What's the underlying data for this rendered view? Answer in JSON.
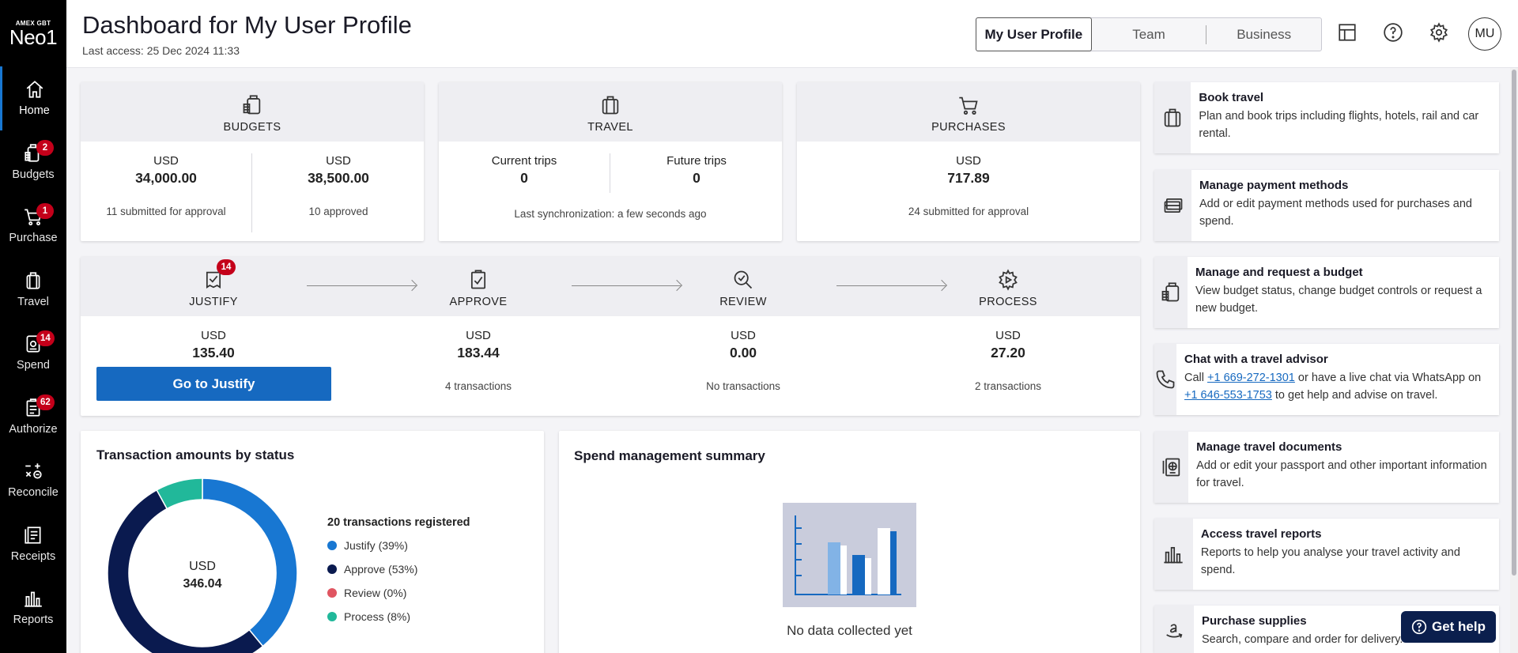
{
  "brand": {
    "small": "AMEX GBT",
    "big": "Neo1"
  },
  "sidebar": {
    "items": [
      {
        "label": "Home",
        "icon": "home-icon",
        "badge": ""
      },
      {
        "label": "Budgets",
        "icon": "budget-icon",
        "badge": "2"
      },
      {
        "label": "Purchase",
        "icon": "cart-icon",
        "badge": "1"
      },
      {
        "label": "Travel",
        "icon": "suitcase-icon",
        "badge": ""
      },
      {
        "label": "Spend",
        "icon": "spend-icon",
        "badge": "14"
      },
      {
        "label": "Authorize",
        "icon": "authorize-icon",
        "badge": "62"
      },
      {
        "label": "Reconcile",
        "icon": "reconcile-icon",
        "badge": ""
      },
      {
        "label": "Receipts",
        "icon": "receipt-icon",
        "badge": ""
      },
      {
        "label": "Reports",
        "icon": "reports-icon",
        "badge": ""
      }
    ]
  },
  "header": {
    "title": "Dashboard for My User Profile",
    "last_access": "Last access: 25 Dec 2024 11:33",
    "segments": [
      "My User Profile",
      "Team",
      "Business"
    ],
    "avatar": "MU"
  },
  "budgets": {
    "title": "BUDGETS",
    "left": {
      "currency": "USD",
      "value": "34,000.00",
      "sub": "11 submitted for approval"
    },
    "right": {
      "currency": "USD",
      "value": "38,500.00",
      "sub": "10 approved"
    }
  },
  "travel": {
    "title": "TRAVEL",
    "left": {
      "label": "Current trips",
      "value": "0"
    },
    "right": {
      "label": "Future trips",
      "value": "0"
    },
    "sub": "Last synchronization: a few seconds ago"
  },
  "purchases": {
    "title": "PURCHASES",
    "currency": "USD",
    "value": "717.89",
    "sub": "24 submitted for approval"
  },
  "flow": {
    "steps": [
      {
        "title": "JUSTIFY",
        "badge": "14",
        "currency": "USD",
        "value": "135.40",
        "sub": ""
      },
      {
        "title": "APPROVE",
        "badge": "",
        "currency": "USD",
        "value": "183.44",
        "sub": "4 transactions"
      },
      {
        "title": "REVIEW",
        "badge": "",
        "currency": "USD",
        "value": "0.00",
        "sub": "No transactions"
      },
      {
        "title": "PROCESS",
        "badge": "",
        "currency": "USD",
        "value": "27.20",
        "sub": "2 transactions"
      }
    ],
    "button": "Go to Justify"
  },
  "transactions": {
    "title": "Transaction amounts by status",
    "center_currency": "USD",
    "center_value": "346.04",
    "legend_title": "20 transactions registered",
    "colors": {
      "justify": "#1877d2",
      "approve": "#0a1a4f",
      "review": "#e05561",
      "process": "#21b89a"
    }
  },
  "chart_data": {
    "type": "pie",
    "categories": [
      "Justify (39%)",
      "Approve (53%)",
      "Review (0%)",
      "Process (8%)"
    ],
    "values": [
      39,
      53,
      0,
      8
    ]
  },
  "spend": {
    "title": "Spend management summary",
    "empty": "No data collected yet"
  },
  "actions": [
    {
      "title": "Book travel",
      "desc": "Plan and book trips including flights, hotels, rail and car rental.",
      "icon": "suitcase-icon"
    },
    {
      "title": "Manage payment methods",
      "desc": "Add or edit payment methods used for purchases and spend.",
      "icon": "payment-card-icon"
    },
    {
      "title": "Manage and request a budget",
      "desc": "View budget status, change budget controls or request a new budget.",
      "icon": "budget-icon"
    },
    {
      "title": "Chat with a travel advisor",
      "desc_a": "Call ",
      "phone1": "+1 669-272-1301",
      "desc_b": " or have a live chat via WhatsApp on ",
      "phone2": "+1 646-553-1753",
      "desc_c": " to get help and advise on travel.",
      "icon": "phone-icon"
    },
    {
      "title": "Manage travel documents",
      "desc": "Add or edit your passport and other important information for travel.",
      "icon": "passport-icon"
    },
    {
      "title": "Access travel reports",
      "desc": "Reports to help you analyse your travel activity and spend.",
      "icon": "reports-icon"
    },
    {
      "title": "Purchase supplies",
      "desc": "Search, compare and order for delivery.",
      "icon": "amazon-icon"
    }
  ],
  "help": {
    "label": "Get help"
  }
}
